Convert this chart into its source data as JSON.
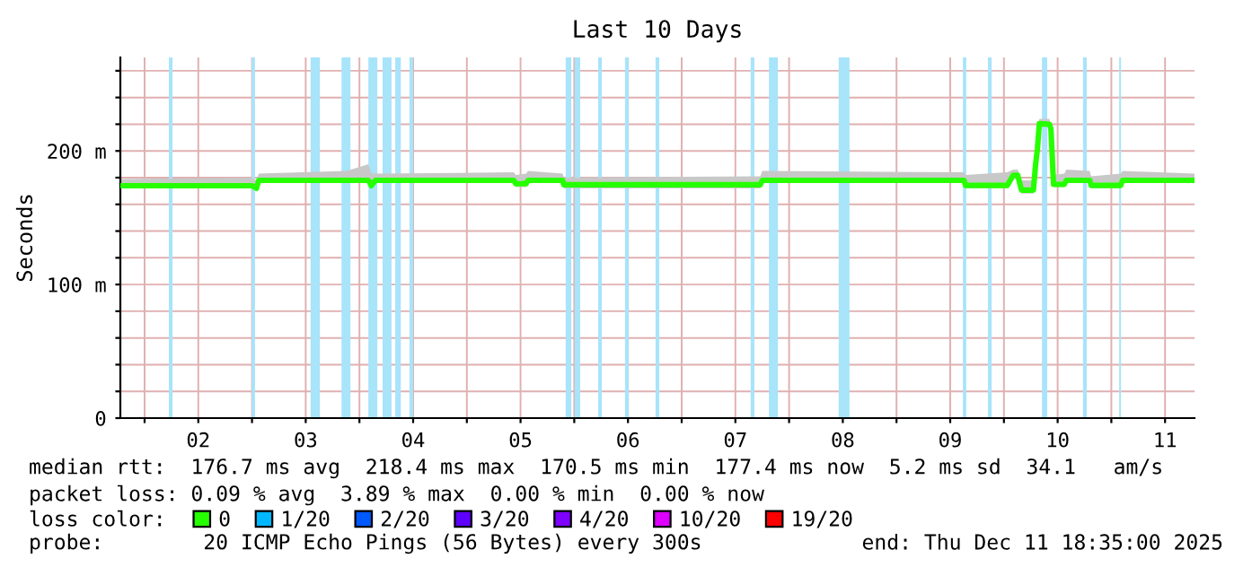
{
  "chart_data": {
    "type": "line",
    "title": "Last 10 Days",
    "ylabel": "Seconds",
    "xlim": [
      "2025-12-01T18:35",
      "2025-12-11T18:35"
    ],
    "xticks": [
      {
        "value": "2025-12-02T00:00",
        "label": null
      },
      {
        "value": "2025-12-02T12:00",
        "label": "02"
      },
      {
        "value": "2025-12-03T00:00",
        "label": null
      },
      {
        "value": "2025-12-03T12:00",
        "label": "03"
      },
      {
        "value": "2025-12-04T00:00",
        "label": null
      },
      {
        "value": "2025-12-04T12:00",
        "label": "04"
      },
      {
        "value": "2025-12-05T00:00",
        "label": null
      },
      {
        "value": "2025-12-05T12:00",
        "label": "05"
      },
      {
        "value": "2025-12-06T00:00",
        "label": null
      },
      {
        "value": "2025-12-06T12:00",
        "label": "06"
      },
      {
        "value": "2025-12-07T00:00",
        "label": null
      },
      {
        "value": "2025-12-07T12:00",
        "label": "07"
      },
      {
        "value": "2025-12-08T00:00",
        "label": null
      },
      {
        "value": "2025-12-08T12:00",
        "label": "08"
      },
      {
        "value": "2025-12-09T00:00",
        "label": null
      },
      {
        "value": "2025-12-09T12:00",
        "label": "09"
      },
      {
        "value": "2025-12-10T00:00",
        "label": null
      },
      {
        "value": "2025-12-10T12:00",
        "label": "10"
      },
      {
        "value": "2025-12-11T00:00",
        "label": null
      },
      {
        "value": "2025-12-11T12:00",
        "label": "11"
      }
    ],
    "ylim": [
      0,
      270
    ],
    "yticks": [
      0,
      {
        "value": 20,
        "label": null
      },
      {
        "value": 40,
        "label": null
      },
      {
        "value": 60,
        "label": null
      },
      {
        "value": 80,
        "label": null
      },
      {
        "value": 100,
        "label": "100 m"
      },
      {
        "value": 120,
        "label": null
      },
      {
        "value": 140,
        "label": null
      },
      {
        "value": 160,
        "label": null
      },
      {
        "value": 180,
        "label": null
      },
      {
        "value": 200,
        "label": "200 m"
      },
      {
        "value": 220,
        "label": null
      },
      {
        "value": 240,
        "label": null
      },
      {
        "value": 260,
        "label": null
      }
    ],
    "grid": true,
    "legend": "bottom",
    "legend_title": "loss color:",
    "x": [
      "2025-12-01T18:35",
      "2025-12-02T23:55",
      "2025-12-03T01:00",
      "2025-12-03T01:30",
      "2025-12-03T21:10",
      "2025-12-04T02:00",
      "2025-12-04T02:40",
      "2025-12-04T03:35",
      "2025-12-05T10:30",
      "2025-12-05T10:55",
      "2025-12-05T13:15",
      "2025-12-05T13:40",
      "2025-12-05T21:25",
      "2025-12-05T21:40",
      "2025-12-07T17:35",
      "2025-12-07T18:00",
      "2025-12-09T15:05",
      "2025-12-09T15:25",
      "2025-12-10T00:45",
      "2025-12-10T02:05",
      "2025-12-10T03:05",
      "2025-12-10T03:55",
      "2025-12-10T06:35",
      "2025-12-10T07:05",
      "2025-12-10T07:30",
      "2025-12-10T07:55",
      "2025-12-10T10:10",
      "2025-12-10T10:30",
      "2025-12-10T11:05",
      "2025-12-10T13:30",
      "2025-12-10T13:55",
      "2025-12-10T19:10",
      "2025-12-10T19:30",
      "2025-12-11T02:05",
      "2025-12-11T02:30",
      "2025-12-11T18:35"
    ],
    "series": [
      {
        "name": "0",
        "color": "#26ff00",
        "values": [
          174,
          174,
          172,
          178,
          178,
          178,
          174,
          178,
          178,
          175.5,
          175.5,
          178,
          178,
          174.7,
          174.7,
          178,
          178,
          174.2,
          174.2,
          181.8,
          181.8,
          170.7,
          170.7,
          190,
          202,
          220.4,
          220,
          216.4,
          175,
          175,
          178,
          178,
          174.2,
          174.2,
          178,
          178
        ],
        "lower": [
          172,
          172,
          170,
          176,
          176,
          176,
          172,
          176,
          176,
          173,
          173,
          176,
          176,
          172,
          172,
          176,
          176,
          172,
          172,
          179,
          179,
          168,
          168,
          188,
          200,
          218,
          218,
          214,
          173,
          173,
          176,
          176,
          172,
          172,
          176,
          176
        ],
        "upper": [
          179,
          180,
          178,
          183,
          185,
          190,
          183,
          183,
          184,
          182,
          183,
          185,
          183,
          180,
          181,
          185,
          184,
          182,
          184,
          186,
          186,
          178,
          178,
          196,
          206,
          224,
          224,
          220,
          182,
          183,
          186,
          185,
          181,
          183,
          185,
          183
        ]
      },
      {
        "name": "1/20",
        "color": "#00b8ff",
        "values": [
          null,
          null,
          null,
          null,
          null,
          null,
          null,
          null,
          null,
          null,
          null,
          null,
          null,
          null,
          null,
          null,
          null,
          null,
          null,
          null,
          null,
          null,
          null,
          null,
          null,
          null,
          null,
          null,
          null,
          null,
          null,
          null,
          null,
          null,
          null,
          null
        ]
      },
      {
        "name": "2/20",
        "color": "#0059ff",
        "values": [
          null,
          null,
          null,
          null,
          null,
          null,
          null,
          null,
          null,
          null,
          null,
          null,
          null,
          null,
          null,
          null,
          null,
          null,
          null,
          null,
          null,
          null,
          null,
          null,
          null,
          null,
          null,
          null,
          null,
          null,
          null,
          null,
          null,
          null,
          null,
          null
        ]
      },
      {
        "name": "3/20",
        "color": "#5e00ff",
        "values": [
          null,
          null,
          null,
          null,
          null,
          null,
          null,
          null,
          null,
          null,
          null,
          null,
          null,
          null,
          null,
          null,
          null,
          null,
          null,
          null,
          null,
          null,
          null,
          null,
          null,
          null,
          null,
          null,
          null,
          null,
          null,
          null,
          null,
          null,
          null,
          null
        ]
      },
      {
        "name": "4/20",
        "color": "#7e00ff",
        "values": [
          null,
          null,
          null,
          null,
          null,
          null,
          null,
          null,
          null,
          null,
          null,
          null,
          null,
          null,
          null,
          null,
          null,
          null,
          null,
          null,
          null,
          null,
          null,
          null,
          null,
          null,
          null,
          null,
          null,
          null,
          null,
          null,
          null,
          null,
          null,
          null
        ]
      },
      {
        "name": "10/20",
        "color": "#dd00ff",
        "values": [
          null,
          null,
          null,
          null,
          null,
          null,
          null,
          null,
          null,
          null,
          null,
          null,
          null,
          null,
          null,
          null,
          null,
          null,
          null,
          null,
          null,
          null,
          null,
          null,
          null,
          null,
          null,
          null,
          null,
          null,
          null,
          null,
          null,
          null,
          null,
          null
        ]
      },
      {
        "name": "19/20",
        "color": "#ff0000",
        "values": [
          null,
          null,
          null,
          null,
          null,
          null,
          null,
          null,
          null,
          null,
          null,
          null,
          null,
          null,
          null,
          null,
          null,
          null,
          null,
          null,
          null,
          null,
          null,
          null,
          null,
          null,
          null,
          null,
          null,
          null,
          null,
          null,
          null,
          null,
          null,
          null
        ]
      }
    ],
    "bands": [
      {
        "axis": "x",
        "from": "2025-12-02T05:25",
        "to": "2025-12-02T06:15",
        "label": null,
        "color": "#a8e4fa"
      },
      {
        "axis": "x",
        "from": "2025-12-02T23:55",
        "to": "2025-12-03T00:40",
        "label": null,
        "color": "#a8e4fa"
      },
      {
        "axis": "x",
        "from": "2025-12-03T13:05",
        "to": "2025-12-03T15:10",
        "label": null,
        "color": "#a8e4fa"
      },
      {
        "axis": "x",
        "from": "2025-12-03T20:00",
        "to": "2025-12-03T22:00",
        "label": null,
        "color": "#a8e4fa"
      },
      {
        "axis": "x",
        "from": "2025-12-04T02:00",
        "to": "2025-12-04T04:00",
        "label": null,
        "color": "#a8e4fa"
      },
      {
        "axis": "x",
        "from": "2025-12-04T05:10",
        "to": "2025-12-04T07:10",
        "label": null,
        "color": "#a8e4fa"
      },
      {
        "axis": "x",
        "from": "2025-12-04T08:00",
        "to": "2025-12-04T09:15",
        "label": null,
        "color": "#a8e4fa"
      },
      {
        "axis": "x",
        "from": "2025-12-04T11:10",
        "to": "2025-12-04T12:00",
        "label": null,
        "color": "#a8e4fa"
      },
      {
        "axis": "x",
        "from": "2025-12-05T22:05",
        "to": "2025-12-05T23:20",
        "label": null,
        "color": "#a8e4fa"
      },
      {
        "axis": "x",
        "from": "2025-12-06T00:05",
        "to": "2025-12-06T01:20",
        "label": null,
        "color": "#a8e4fa"
      },
      {
        "axis": "x",
        "from": "2025-12-06T05:20",
        "to": "2025-12-06T06:10",
        "label": null,
        "color": "#a8e4fa"
      },
      {
        "axis": "x",
        "from": "2025-12-06T11:20",
        "to": "2025-12-06T12:10",
        "label": null,
        "color": "#a8e4fa"
      },
      {
        "axis": "x",
        "from": "2025-12-06T18:10",
        "to": "2025-12-06T19:00",
        "label": null,
        "color": "#a8e4fa"
      },
      {
        "axis": "x",
        "from": "2025-12-07T15:25",
        "to": "2025-12-07T16:15",
        "label": null,
        "color": "#a8e4fa"
      },
      {
        "axis": "x",
        "from": "2025-12-07T19:30",
        "to": "2025-12-07T21:30",
        "label": null,
        "color": "#a8e4fa"
      },
      {
        "axis": "x",
        "from": "2025-12-08T11:05",
        "to": "2025-12-08T13:30",
        "label": null,
        "color": "#a8e4fa"
      },
      {
        "axis": "x",
        "from": "2025-12-09T14:50",
        "to": "2025-12-09T15:35",
        "label": null,
        "color": "#a8e4fa"
      },
      {
        "axis": "x",
        "from": "2025-12-09T20:25",
        "to": "2025-12-09T21:15",
        "label": null,
        "color": "#a8e4fa"
      },
      {
        "axis": "x",
        "from": "2025-12-10T08:30",
        "to": "2025-12-10T09:40",
        "label": null,
        "color": "#a8e4fa"
      },
      {
        "axis": "x",
        "from": "2025-12-10T17:40",
        "to": "2025-12-10T18:30",
        "label": null,
        "color": "#a8e4fa"
      },
      {
        "axis": "x",
        "from": "2025-12-11T01:45",
        "to": "2025-12-11T02:10",
        "label": null,
        "color": "#a8e4fa"
      }
    ],
    "annotations": [
      "median rtt:  176.7 ms avg  218.4 ms max  170.5 ms min  177.4 ms now  5.2 ms sd  34.1   am/s",
      "packet loss: 0.09 % avg  3.89 % max  0.00 % min  0.00 % now",
      "probe:        20 ICMP Echo Pings (56 Bytes) every 300s",
      "end: Thu Dec 11 18:35:00 2025"
    ]
  }
}
